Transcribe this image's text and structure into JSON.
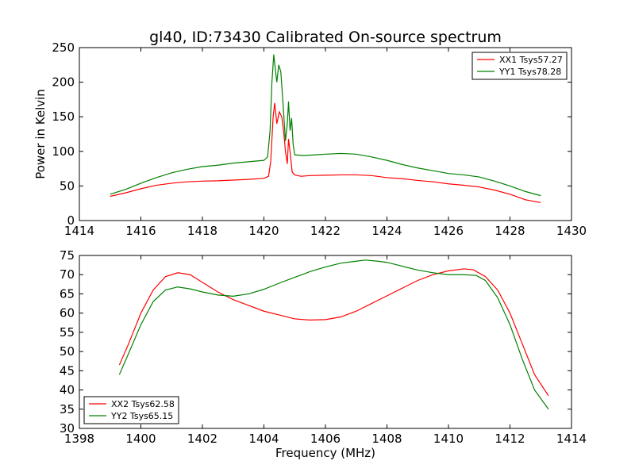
{
  "title": "gl40, ID:73430 Calibrated On-source spectrum",
  "chart_data": [
    {
      "type": "line",
      "ylabel": "Power in Kelvin",
      "xlabel": "",
      "xlim": [
        1414,
        1430
      ],
      "ylim": [
        0,
        250
      ],
      "xticks": [
        "1414",
        "1416",
        "1418",
        "1420",
        "1422",
        "1424",
        "1426",
        "1428",
        "1430"
      ],
      "yticks": [
        "0",
        "50",
        "100",
        "150",
        "200",
        "250"
      ],
      "legend_position": "top-right",
      "grid": false,
      "series": [
        {
          "name": "XX1 Tsys57.27",
          "color": "#ff0000",
          "points": [
            [
              1415.0,
              35
            ],
            [
              1415.5,
              40
            ],
            [
              1416.0,
              46
            ],
            [
              1416.5,
              51
            ],
            [
              1417.0,
              54
            ],
            [
              1417.5,
              56
            ],
            [
              1418.0,
              57
            ],
            [
              1418.5,
              57.5
            ],
            [
              1419.0,
              58.5
            ],
            [
              1419.5,
              59.5
            ],
            [
              1420.0,
              61
            ],
            [
              1420.15,
              64
            ],
            [
              1420.22,
              85
            ],
            [
              1420.3,
              150
            ],
            [
              1420.35,
              170
            ],
            [
              1420.42,
              140
            ],
            [
              1420.5,
              157
            ],
            [
              1420.58,
              150
            ],
            [
              1420.65,
              125
            ],
            [
              1420.7,
              100
            ],
            [
              1420.76,
              82
            ],
            [
              1420.8,
              118
            ],
            [
              1420.86,
              95
            ],
            [
              1420.92,
              70
            ],
            [
              1421.0,
              66
            ],
            [
              1421.2,
              64
            ],
            [
              1421.5,
              65
            ],
            [
              1422.0,
              65.5
            ],
            [
              1422.5,
              66
            ],
            [
              1423.0,
              66
            ],
            [
              1423.5,
              65
            ],
            [
              1424.0,
              62
            ],
            [
              1424.5,
              60.5
            ],
            [
              1425.0,
              58
            ],
            [
              1425.5,
              56
            ],
            [
              1426.0,
              53
            ],
            [
              1426.5,
              51
            ],
            [
              1427.0,
              48.5
            ],
            [
              1427.5,
              44
            ],
            [
              1428.0,
              38
            ],
            [
              1428.5,
              30
            ],
            [
              1429.0,
              26
            ]
          ]
        },
        {
          "name": "YY1 Tsys78.28",
          "color": "#008000",
          "points": [
            [
              1415.0,
              38
            ],
            [
              1415.5,
              45
            ],
            [
              1416.0,
              54
            ],
            [
              1416.5,
              62
            ],
            [
              1417.0,
              69
            ],
            [
              1417.5,
              74
            ],
            [
              1418.0,
              78
            ],
            [
              1418.5,
              80
            ],
            [
              1419.0,
              83
            ],
            [
              1419.5,
              85
            ],
            [
              1420.0,
              87
            ],
            [
              1420.12,
              92
            ],
            [
              1420.2,
              130
            ],
            [
              1420.26,
              200
            ],
            [
              1420.32,
              240
            ],
            [
              1420.38,
              215
            ],
            [
              1420.42,
              200
            ],
            [
              1420.48,
              225
            ],
            [
              1420.55,
              215
            ],
            [
              1420.62,
              170
            ],
            [
              1420.7,
              115
            ],
            [
              1420.76,
              140
            ],
            [
              1420.8,
              172
            ],
            [
              1420.85,
              130
            ],
            [
              1420.9,
              148
            ],
            [
              1420.95,
              110
            ],
            [
              1421.0,
              95
            ],
            [
              1421.3,
              94
            ],
            [
              1421.7,
              95
            ],
            [
              1422.0,
              96
            ],
            [
              1422.5,
              97
            ],
            [
              1423.0,
              96
            ],
            [
              1423.5,
              92
            ],
            [
              1424.0,
              87
            ],
            [
              1424.5,
              81
            ],
            [
              1425.0,
              76
            ],
            [
              1425.5,
              72
            ],
            [
              1426.0,
              68
            ],
            [
              1426.5,
              66
            ],
            [
              1427.0,
              63
            ],
            [
              1427.5,
              57
            ],
            [
              1428.0,
              50
            ],
            [
              1428.5,
              42
            ],
            [
              1429.0,
              36
            ]
          ]
        }
      ]
    },
    {
      "type": "line",
      "ylabel": "",
      "xlabel": "Frequency (MHz)",
      "xlim": [
        1398,
        1414
      ],
      "ylim": [
        30,
        75
      ],
      "xticks": [
        "1398",
        "1400",
        "1402",
        "1404",
        "1406",
        "1408",
        "1410",
        "1412",
        "1414"
      ],
      "yticks": [
        "30",
        "35",
        "40",
        "45",
        "50",
        "55",
        "60",
        "65",
        "70",
        "75"
      ],
      "legend_position": "bottom-left",
      "grid": false,
      "series": [
        {
          "name": "XX2 Tsys62.58",
          "color": "#ff0000",
          "points": [
            [
              1399.3,
              46.5
            ],
            [
              1399.6,
              52
            ],
            [
              1400.0,
              60
            ],
            [
              1400.4,
              66
            ],
            [
              1400.8,
              69.5
            ],
            [
              1401.2,
              70.5
            ],
            [
              1401.6,
              70
            ],
            [
              1402.0,
              68
            ],
            [
              1402.5,
              65.5
            ],
            [
              1403.0,
              63.5
            ],
            [
              1403.5,
              62
            ],
            [
              1404.0,
              60.5
            ],
            [
              1404.5,
              59.5
            ],
            [
              1405.0,
              58.5
            ],
            [
              1405.5,
              58.2
            ],
            [
              1406.0,
              58.3
            ],
            [
              1406.5,
              59
            ],
            [
              1407.0,
              60.5
            ],
            [
              1407.5,
              62.5
            ],
            [
              1408.0,
              64.5
            ],
            [
              1408.5,
              66.5
            ],
            [
              1409.0,
              68.5
            ],
            [
              1409.5,
              70
            ],
            [
              1410.0,
              71
            ],
            [
              1410.5,
              71.5
            ],
            [
              1410.8,
              71.3
            ],
            [
              1411.2,
              69.5
            ],
            [
              1411.6,
              66
            ],
            [
              1412.0,
              60
            ],
            [
              1412.4,
              52
            ],
            [
              1412.8,
              44
            ],
            [
              1413.25,
              38.5
            ]
          ]
        },
        {
          "name": "YY2 Tsys65.15",
          "color": "#008000",
          "points": [
            [
              1399.3,
              44
            ],
            [
              1399.6,
              49.5
            ],
            [
              1400.0,
              57
            ],
            [
              1400.4,
              63
            ],
            [
              1400.8,
              66
            ],
            [
              1401.2,
              66.8
            ],
            [
              1401.6,
              66.3
            ],
            [
              1402.0,
              65.5
            ],
            [
              1402.5,
              64.7
            ],
            [
              1403.0,
              64.4
            ],
            [
              1403.5,
              65
            ],
            [
              1404.0,
              66.2
            ],
            [
              1404.5,
              67.8
            ],
            [
              1405.0,
              69.3
            ],
            [
              1405.5,
              70.8
            ],
            [
              1406.0,
              72
            ],
            [
              1406.5,
              73
            ],
            [
              1407.0,
              73.5
            ],
            [
              1407.3,
              73.8
            ],
            [
              1407.7,
              73.5
            ],
            [
              1408.0,
              73.2
            ],
            [
              1408.5,
              72.2
            ],
            [
              1409.0,
              71.2
            ],
            [
              1409.5,
              70.5
            ],
            [
              1410.0,
              70
            ],
            [
              1410.5,
              70
            ],
            [
              1410.9,
              69.8
            ],
            [
              1411.2,
              68.5
            ],
            [
              1411.6,
              64
            ],
            [
              1412.0,
              57
            ],
            [
              1412.4,
              48
            ],
            [
              1412.8,
              40
            ],
            [
              1413.25,
              35
            ]
          ]
        }
      ]
    }
  ]
}
